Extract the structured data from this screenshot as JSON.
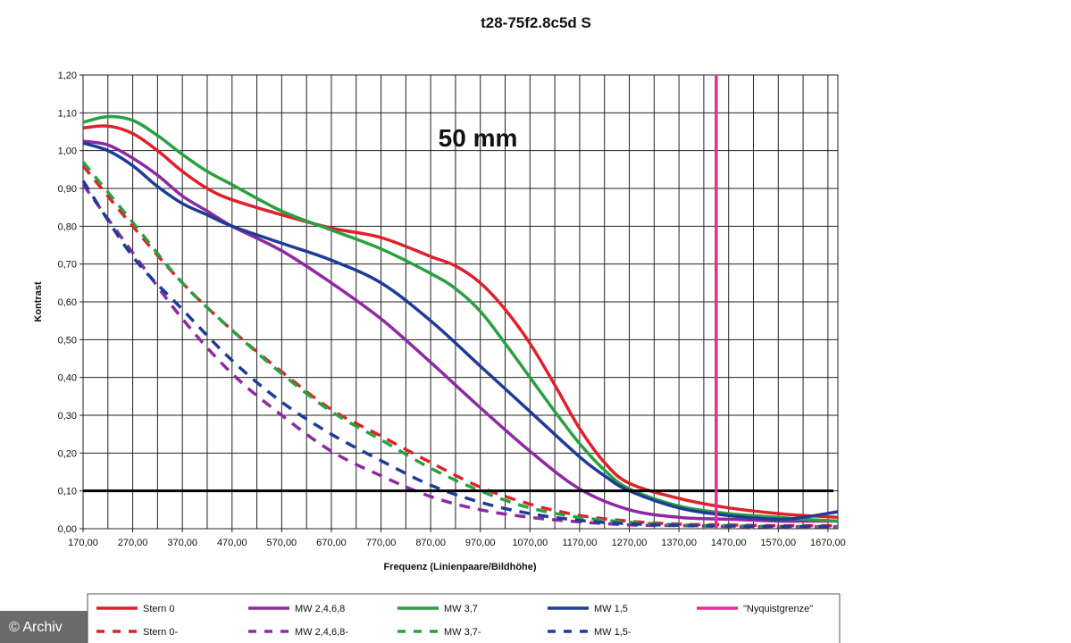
{
  "watermark": "© Archiv",
  "chart_data": {
    "type": "line",
    "title": "t28-75f2.8c5d S",
    "annotation": "50 mm",
    "xlabel": "Frequenz (Linienpaare/Bildhöhe)",
    "ylabel": "Kontrast",
    "xlim": [
      170,
      1690
    ],
    "ylim": [
      0,
      1.2
    ],
    "x_ticks": [
      "170,00",
      "270,00",
      "370,00",
      "470,00",
      "570,00",
      "670,00",
      "770,00",
      "870,00",
      "970,00",
      "1070,00",
      "1170,00",
      "1270,00",
      "1370,00",
      "1470,00",
      "1570,00",
      "1670,00"
    ],
    "y_ticks": [
      "0,00",
      "0,10",
      "0,20",
      "0,30",
      "0,40",
      "0,50",
      "0,60",
      "0,70",
      "0,80",
      "0,90",
      "1,00",
      "1,10",
      "1,20"
    ],
    "grid": true,
    "legend_position": "bottom",
    "reference_lines": [
      {
        "orientation": "horizontal",
        "y": 0.1,
        "color": "#000000"
      },
      {
        "name": "\"Nyquistgrenze\"",
        "orientation": "vertical",
        "x": 1445,
        "color": "#e0309a"
      }
    ],
    "series": [
      {
        "name": "Stern 0",
        "color": "#e0202a",
        "style": "solid",
        "x": [
          170,
          220,
          270,
          320,
          370,
          420,
          470,
          570,
          670,
          770,
          870,
          920,
          970,
          1020,
          1070,
          1120,
          1170,
          1220,
          1270,
          1370,
          1470,
          1570,
          1620,
          1690
        ],
        "y": [
          1.06,
          1.065,
          1.045,
          1.0,
          0.945,
          0.9,
          0.87,
          0.83,
          0.795,
          0.77,
          0.72,
          0.695,
          0.65,
          0.58,
          0.49,
          0.38,
          0.265,
          0.175,
          0.12,
          0.08,
          0.055,
          0.04,
          0.035,
          0.03
        ]
      },
      {
        "name": "MW 2,4,6,8",
        "color": "#8e2aa0",
        "style": "solid",
        "x": [
          170,
          220,
          270,
          320,
          370,
          420,
          470,
          570,
          670,
          770,
          870,
          970,
          1070,
          1170,
          1270,
          1370,
          1470,
          1570,
          1620,
          1690
        ],
        "y": [
          1.025,
          1.015,
          0.98,
          0.935,
          0.88,
          0.84,
          0.8,
          0.735,
          0.65,
          0.555,
          0.44,
          0.32,
          0.205,
          0.105,
          0.05,
          0.03,
          0.025,
          0.02,
          0.02,
          0.02
        ]
      },
      {
        "name": "MW 3,7",
        "color": "#2aa040",
        "style": "solid",
        "x": [
          170,
          220,
          270,
          320,
          370,
          420,
          470,
          570,
          670,
          770,
          870,
          920,
          970,
          1020,
          1070,
          1120,
          1170,
          1220,
          1270,
          1370,
          1470,
          1570,
          1620,
          1690
        ],
        "y": [
          1.075,
          1.09,
          1.08,
          1.04,
          0.99,
          0.945,
          0.91,
          0.84,
          0.79,
          0.74,
          0.675,
          0.635,
          0.575,
          0.49,
          0.4,
          0.31,
          0.225,
          0.155,
          0.105,
          0.06,
          0.04,
          0.03,
          0.025,
          0.02
        ]
      },
      {
        "name": "MW 1,5",
        "color": "#1e3c96",
        "style": "solid",
        "x": [
          170,
          220,
          270,
          320,
          370,
          420,
          470,
          570,
          670,
          770,
          870,
          970,
          1070,
          1170,
          1220,
          1270,
          1370,
          1470,
          1570,
          1620,
          1690
        ],
        "y": [
          1.02,
          1.0,
          0.96,
          0.905,
          0.86,
          0.83,
          0.8,
          0.755,
          0.71,
          0.65,
          0.55,
          0.43,
          0.31,
          0.19,
          0.14,
          0.1,
          0.055,
          0.035,
          0.025,
          0.03,
          0.045
        ]
      },
      {
        "name": "Stern 0-",
        "color": "#e0202a",
        "style": "dashed",
        "x": [
          170,
          270,
          370,
          470,
          570,
          670,
          770,
          870,
          970,
          1070,
          1170,
          1270,
          1370,
          1470,
          1570,
          1690
        ],
        "y": [
          0.96,
          0.8,
          0.65,
          0.525,
          0.415,
          0.315,
          0.245,
          0.175,
          0.11,
          0.065,
          0.035,
          0.02,
          0.012,
          0.01,
          0.008,
          0.008
        ]
      },
      {
        "name": "MW 2,4,6,8-",
        "color": "#8e2aa0",
        "style": "dashed",
        "x": [
          170,
          270,
          370,
          470,
          570,
          670,
          770,
          870,
          970,
          1070,
          1170,
          1270,
          1370,
          1470,
          1570,
          1690
        ],
        "y": [
          0.91,
          0.73,
          0.555,
          0.41,
          0.3,
          0.205,
          0.14,
          0.085,
          0.05,
          0.03,
          0.018,
          0.01,
          0.008,
          0.006,
          0.005,
          0.005
        ]
      },
      {
        "name": "MW 3,7-",
        "color": "#2aa040",
        "style": "dashed",
        "x": [
          170,
          270,
          370,
          470,
          570,
          670,
          770,
          870,
          970,
          1070,
          1170,
          1270,
          1370,
          1470,
          1570,
          1690
        ],
        "y": [
          0.97,
          0.81,
          0.65,
          0.525,
          0.41,
          0.31,
          0.235,
          0.16,
          0.1,
          0.055,
          0.03,
          0.017,
          0.01,
          0.008,
          0.006,
          0.006
        ]
      },
      {
        "name": "MW 1,5-",
        "color": "#1e3c96",
        "style": "dashed",
        "x": [
          170,
          270,
          370,
          470,
          570,
          670,
          770,
          870,
          970,
          1070,
          1170,
          1270,
          1370,
          1470,
          1570,
          1690
        ],
        "y": [
          0.92,
          0.72,
          0.58,
          0.445,
          0.335,
          0.25,
          0.18,
          0.115,
          0.07,
          0.04,
          0.022,
          0.013,
          0.009,
          0.007,
          0.006,
          0.006
        ]
      }
    ]
  }
}
